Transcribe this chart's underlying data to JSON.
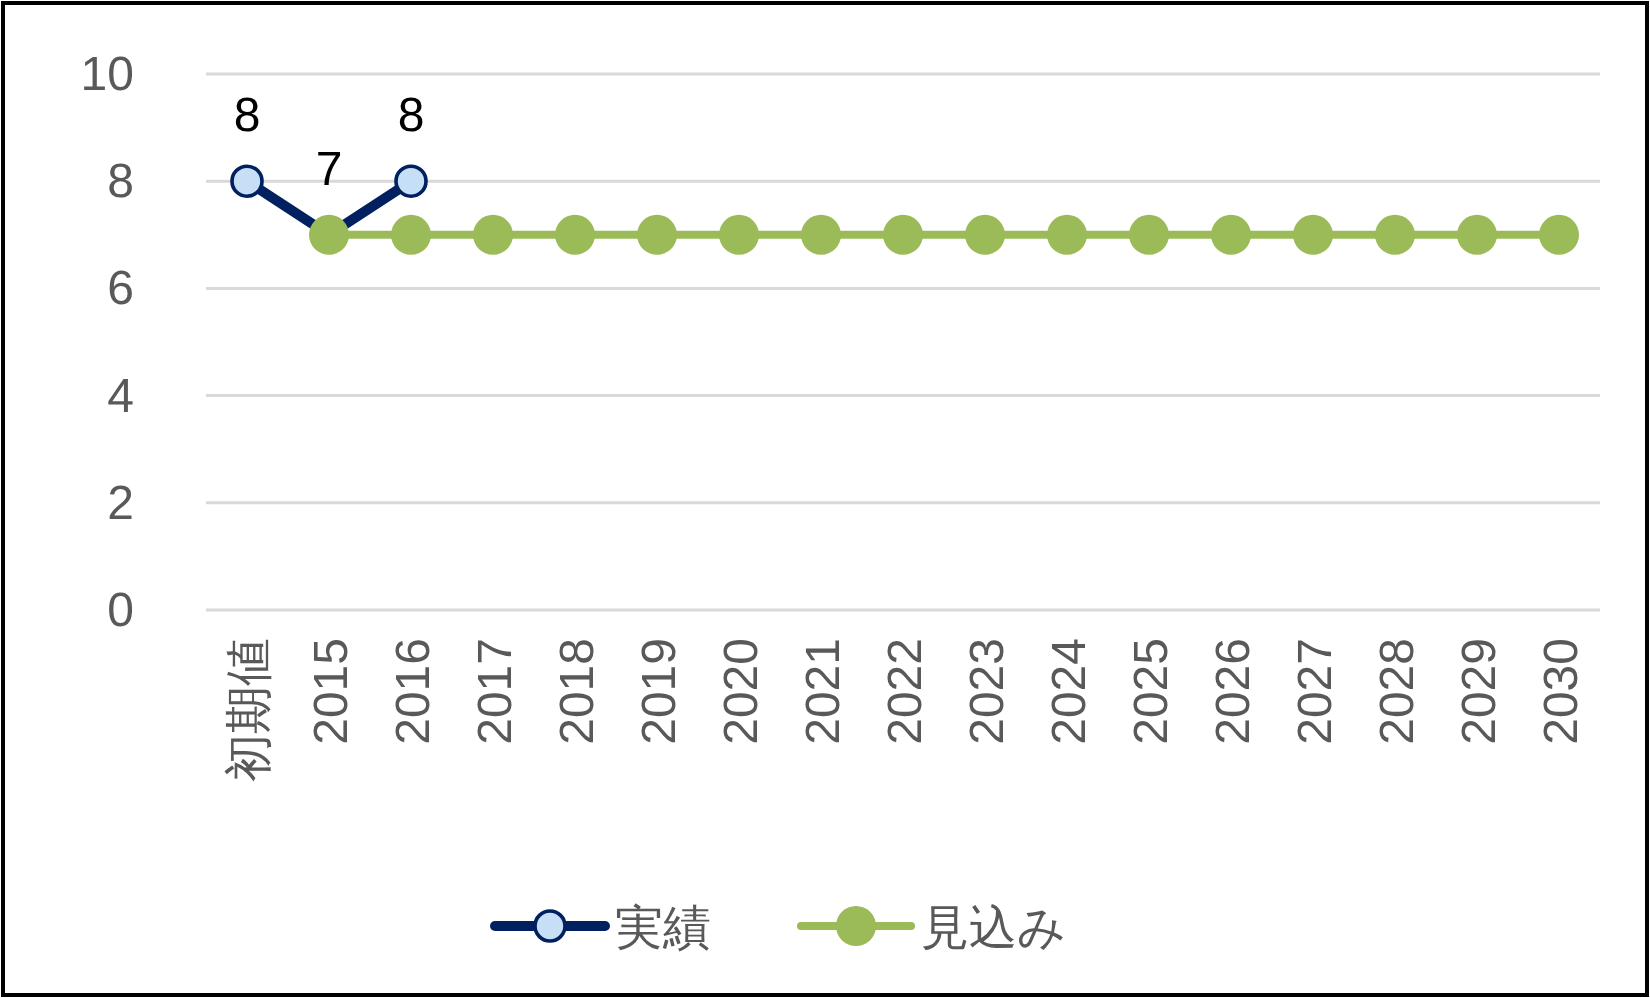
{
  "chart_data": {
    "type": "line",
    "categories": [
      "初期値",
      "2015",
      "2016",
      "2017",
      "2018",
      "2019",
      "2020",
      "2021",
      "2022",
      "2023",
      "2024",
      "2025",
      "2026",
      "2027",
      "2028",
      "2029",
      "2030"
    ],
    "series": [
      {
        "name": "実績",
        "color": "#002060",
        "values": [
          8,
          7,
          8,
          null,
          null,
          null,
          null,
          null,
          null,
          null,
          null,
          null,
          null,
          null,
          null,
          null,
          null
        ],
        "value_labels": [
          "8",
          "7",
          "8",
          null,
          null,
          null,
          null,
          null,
          null,
          null,
          null,
          null,
          null,
          null,
          null,
          null,
          null
        ]
      },
      {
        "name": "見込み",
        "color": "#9bbb59",
        "values": [
          null,
          7,
          7,
          7,
          7,
          7,
          7,
          7,
          7,
          7,
          7,
          7,
          7,
          7,
          7,
          7,
          7
        ]
      }
    ],
    "ylim": [
      0,
      10
    ],
    "yticks": [
      0,
      2,
      4,
      6,
      8,
      10
    ],
    "grid": "y",
    "legend": "bottom",
    "marker": "circle",
    "line_style": "solid"
  }
}
